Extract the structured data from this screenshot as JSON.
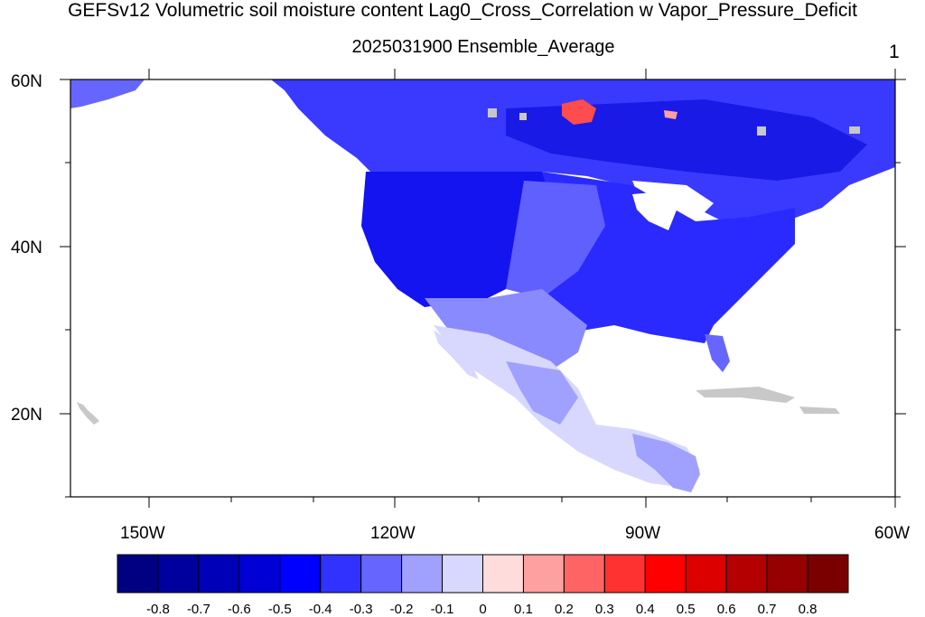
{
  "title": "GEFSv12 Volumetric soil moisture content Lag0_Cross_Correlation w Vapor_Pressure_Deficit",
  "subtitle": "2025031900 Ensemble_Average",
  "panel_number": "1",
  "map": {
    "projection": "cylindrical equidistant",
    "lon_range": [
      -160,
      -60
    ],
    "lat_range": [
      10,
      60
    ],
    "lat_labels": [
      "60N",
      "40N",
      "20N"
    ],
    "lon_labels": [
      "150W",
      "120W",
      "90W",
      "60W"
    ],
    "missing_color": "#c8c8c8",
    "ocean_color": "#ffffff"
  },
  "colorbar": {
    "labels": [
      "-0.8",
      "-0.7",
      "-0.6",
      "-0.5",
      "-0.4",
      "-0.3",
      "-0.2",
      "-0.1",
      "0",
      "0.1",
      "0.2",
      "0.3",
      "0.4",
      "0.5",
      "0.6",
      "0.7",
      "0.8"
    ],
    "colors": [
      "#000080",
      "#00009e",
      "#0000b8",
      "#0000d6",
      "#0000ff",
      "#3232ff",
      "#6666ff",
      "#a0a0ff",
      "#d8d8ff",
      "#ffdcdc",
      "#ffa0a0",
      "#ff6464",
      "#ff3232",
      "#ff0000",
      "#dc0000",
      "#b40000",
      "#960000",
      "#7a0000"
    ]
  }
}
